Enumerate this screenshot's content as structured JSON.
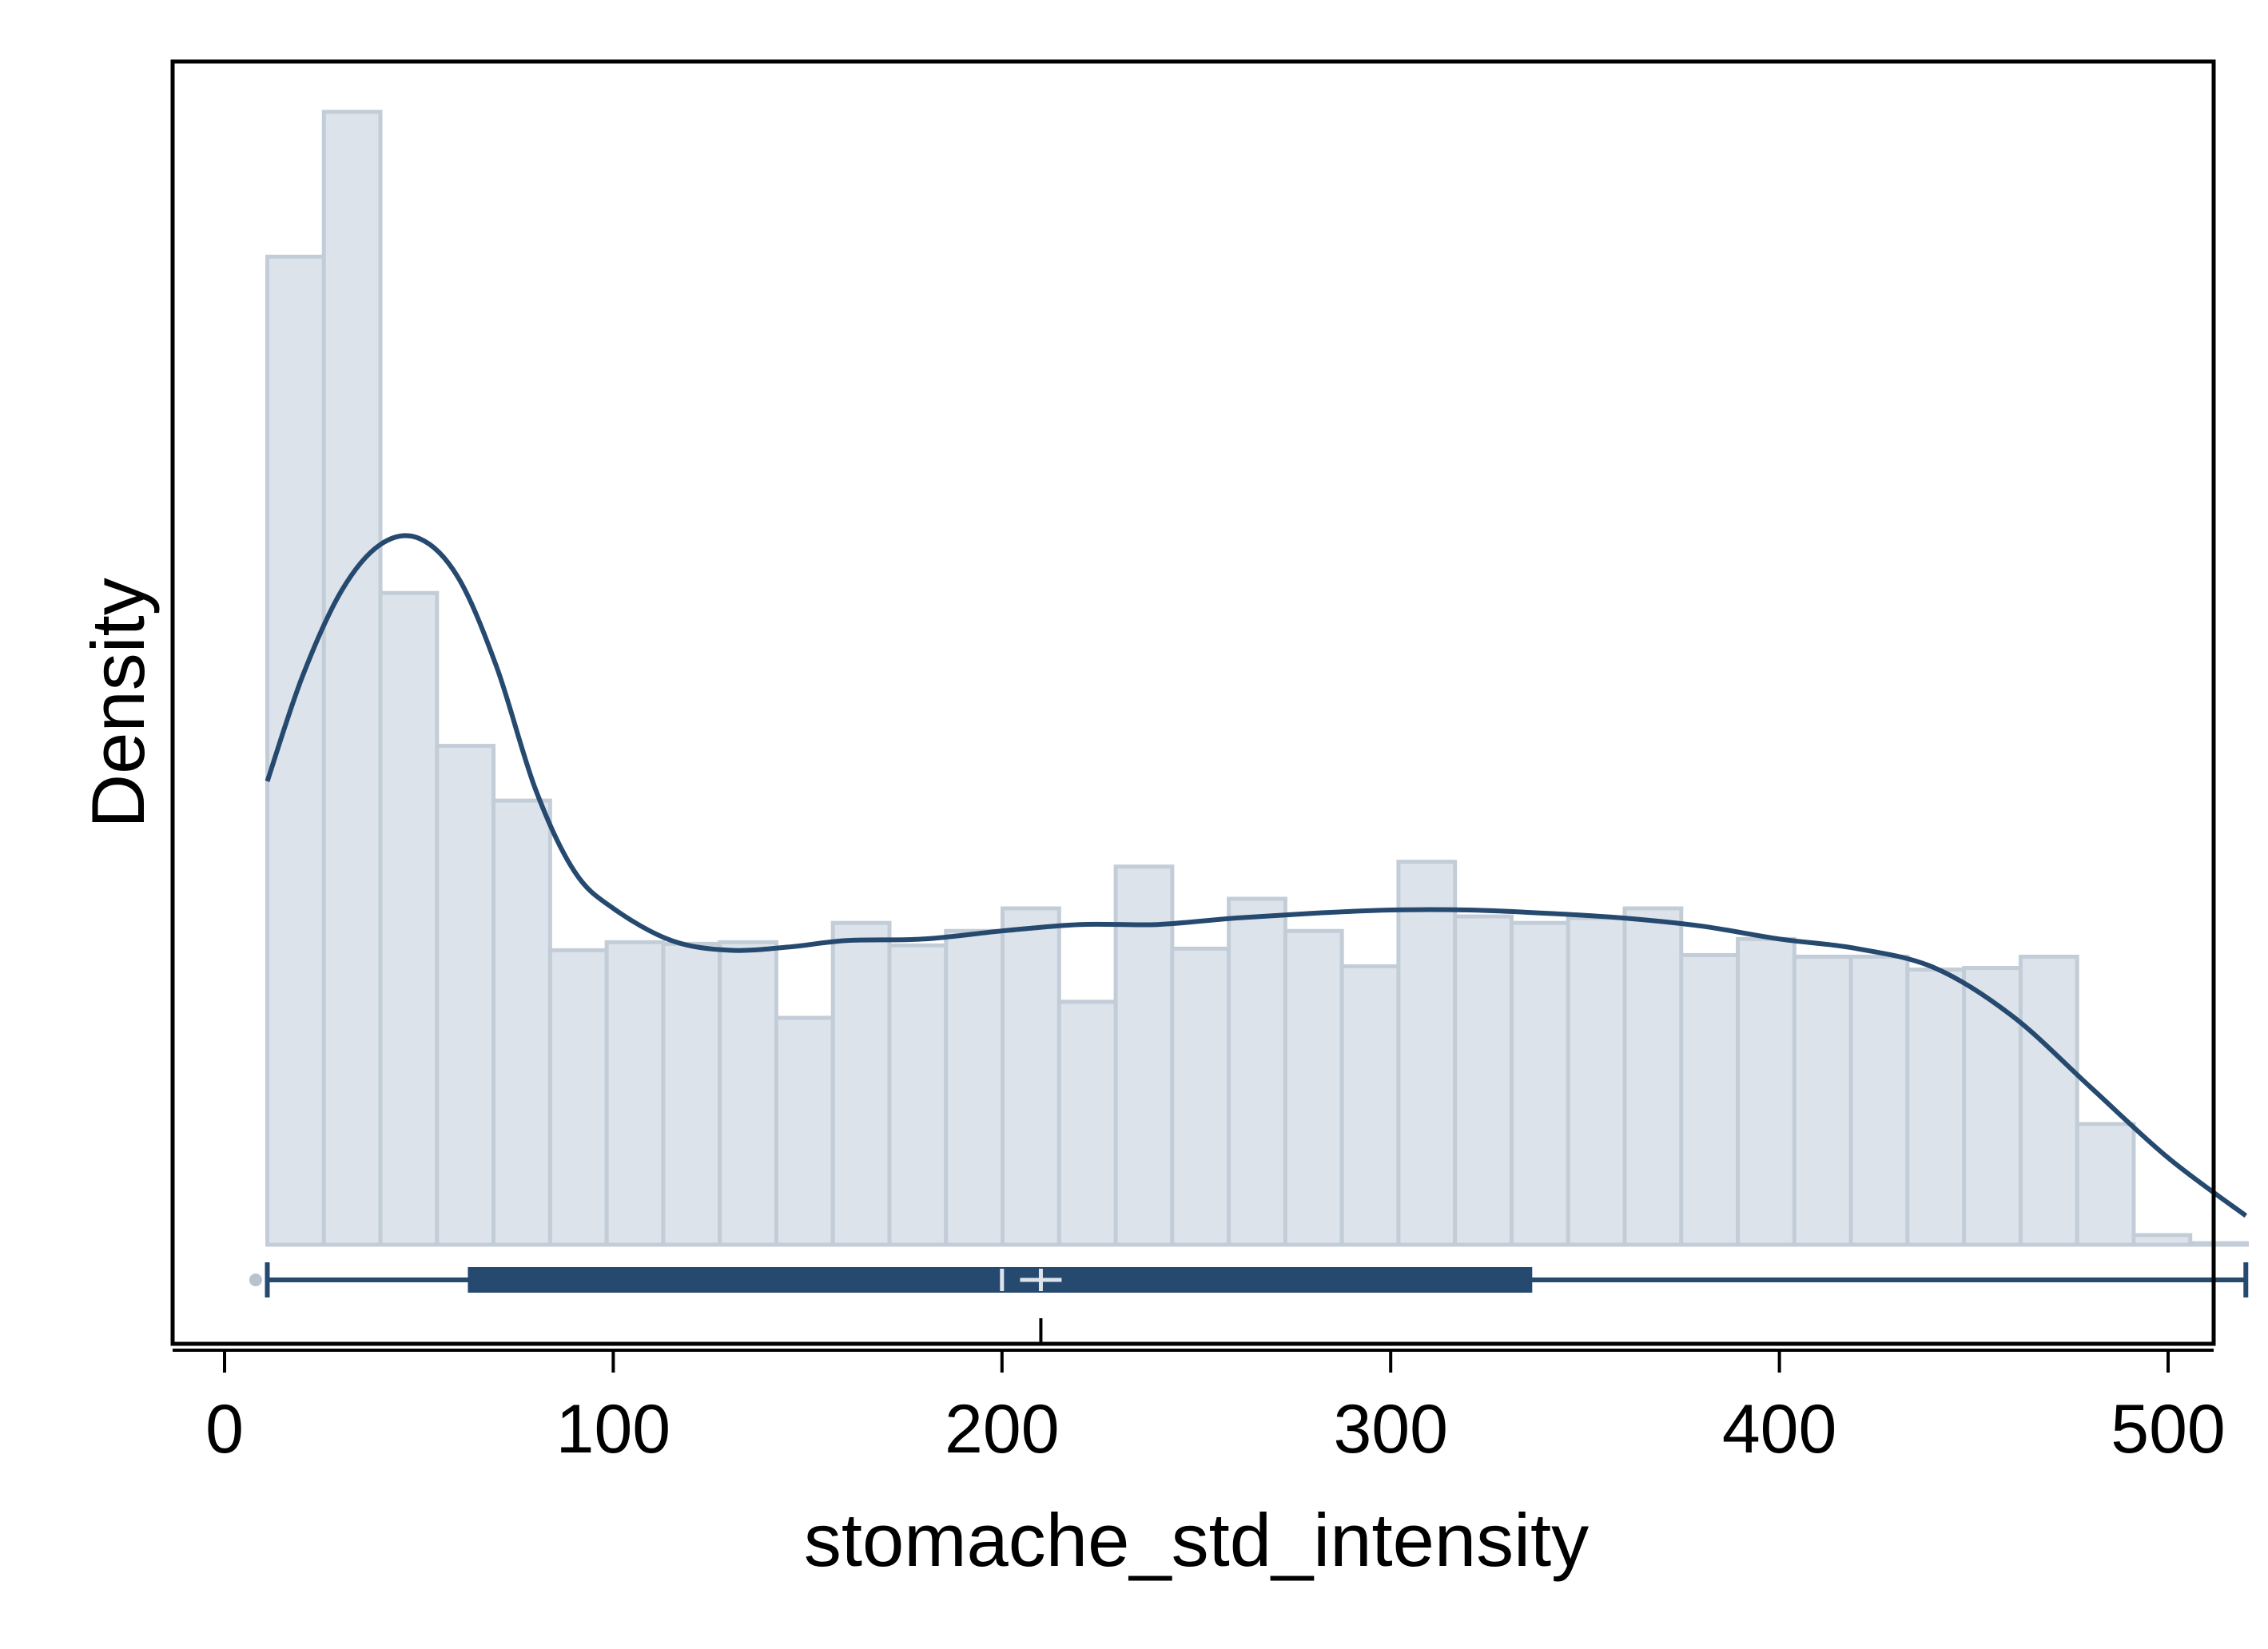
{
  "chart_data": {
    "type": "bar",
    "subtype": "histogram-with-density-and-boxplot",
    "title": "",
    "xlabel": "stomache_std_intensity",
    "ylabel": "Density",
    "xlim": [
      -5,
      535
    ],
    "ylim": [
      0,
      0.00715
    ],
    "x_ticks": [
      0,
      100,
      200,
      300,
      400,
      500
    ],
    "x_tick_labels": [
      "0",
      "100",
      "200",
      "300",
      "400",
      "500"
    ],
    "y_ticks_shown": false,
    "histogram": {
      "bin_width": 14.55,
      "bin_start": 11.0,
      "values": [
        0.00614,
        0.00704,
        0.00405,
        0.0031,
        0.00276,
        0.00183,
        0.00188,
        0.00187,
        0.00188,
        0.00141,
        0.002,
        0.00186,
        0.00195,
        0.00209,
        0.00151,
        0.00235,
        0.00184,
        0.00215,
        0.00195,
        0.00173,
        0.00238,
        0.00204,
        0.002,
        0.00203,
        0.00209,
        0.0018,
        0.0019,
        0.00179,
        0.00179,
        0.00171,
        0.00172,
        0.00179,
        0.00075,
        6e-05,
        1e-05
      ],
      "fill": "#dde3ea",
      "stroke": "#c3cdd8"
    },
    "density": {
      "x": [
        11,
        20,
        30,
        40,
        50,
        60,
        70,
        80,
        90,
        100,
        115,
        130,
        145,
        160,
        180,
        200,
        220,
        240,
        260,
        280,
        300,
        320,
        340,
        360,
        380,
        400,
        420,
        440,
        460,
        480,
        500,
        520
      ],
      "y": [
        0.00288,
        0.00353,
        0.00406,
        0.00435,
        0.00439,
        0.00415,
        0.00359,
        0.00283,
        0.00232,
        0.00209,
        0.00189,
        0.00183,
        0.00185,
        0.00189,
        0.0019,
        0.00195,
        0.00199,
        0.00199,
        0.00203,
        0.00206,
        0.00208,
        0.00208,
        0.00206,
        0.00203,
        0.00198,
        0.0019,
        0.00184,
        0.00172,
        0.00142,
        0.00098,
        0.00054,
        0.00018
      ],
      "color": "#25496f"
    },
    "boxplot": {
      "whisker_low": 11,
      "q1": 63,
      "median": 200,
      "mean": 210,
      "q3": 336,
      "whisker_high": 520,
      "outliers": [
        8
      ],
      "color": "#25496f"
    }
  }
}
